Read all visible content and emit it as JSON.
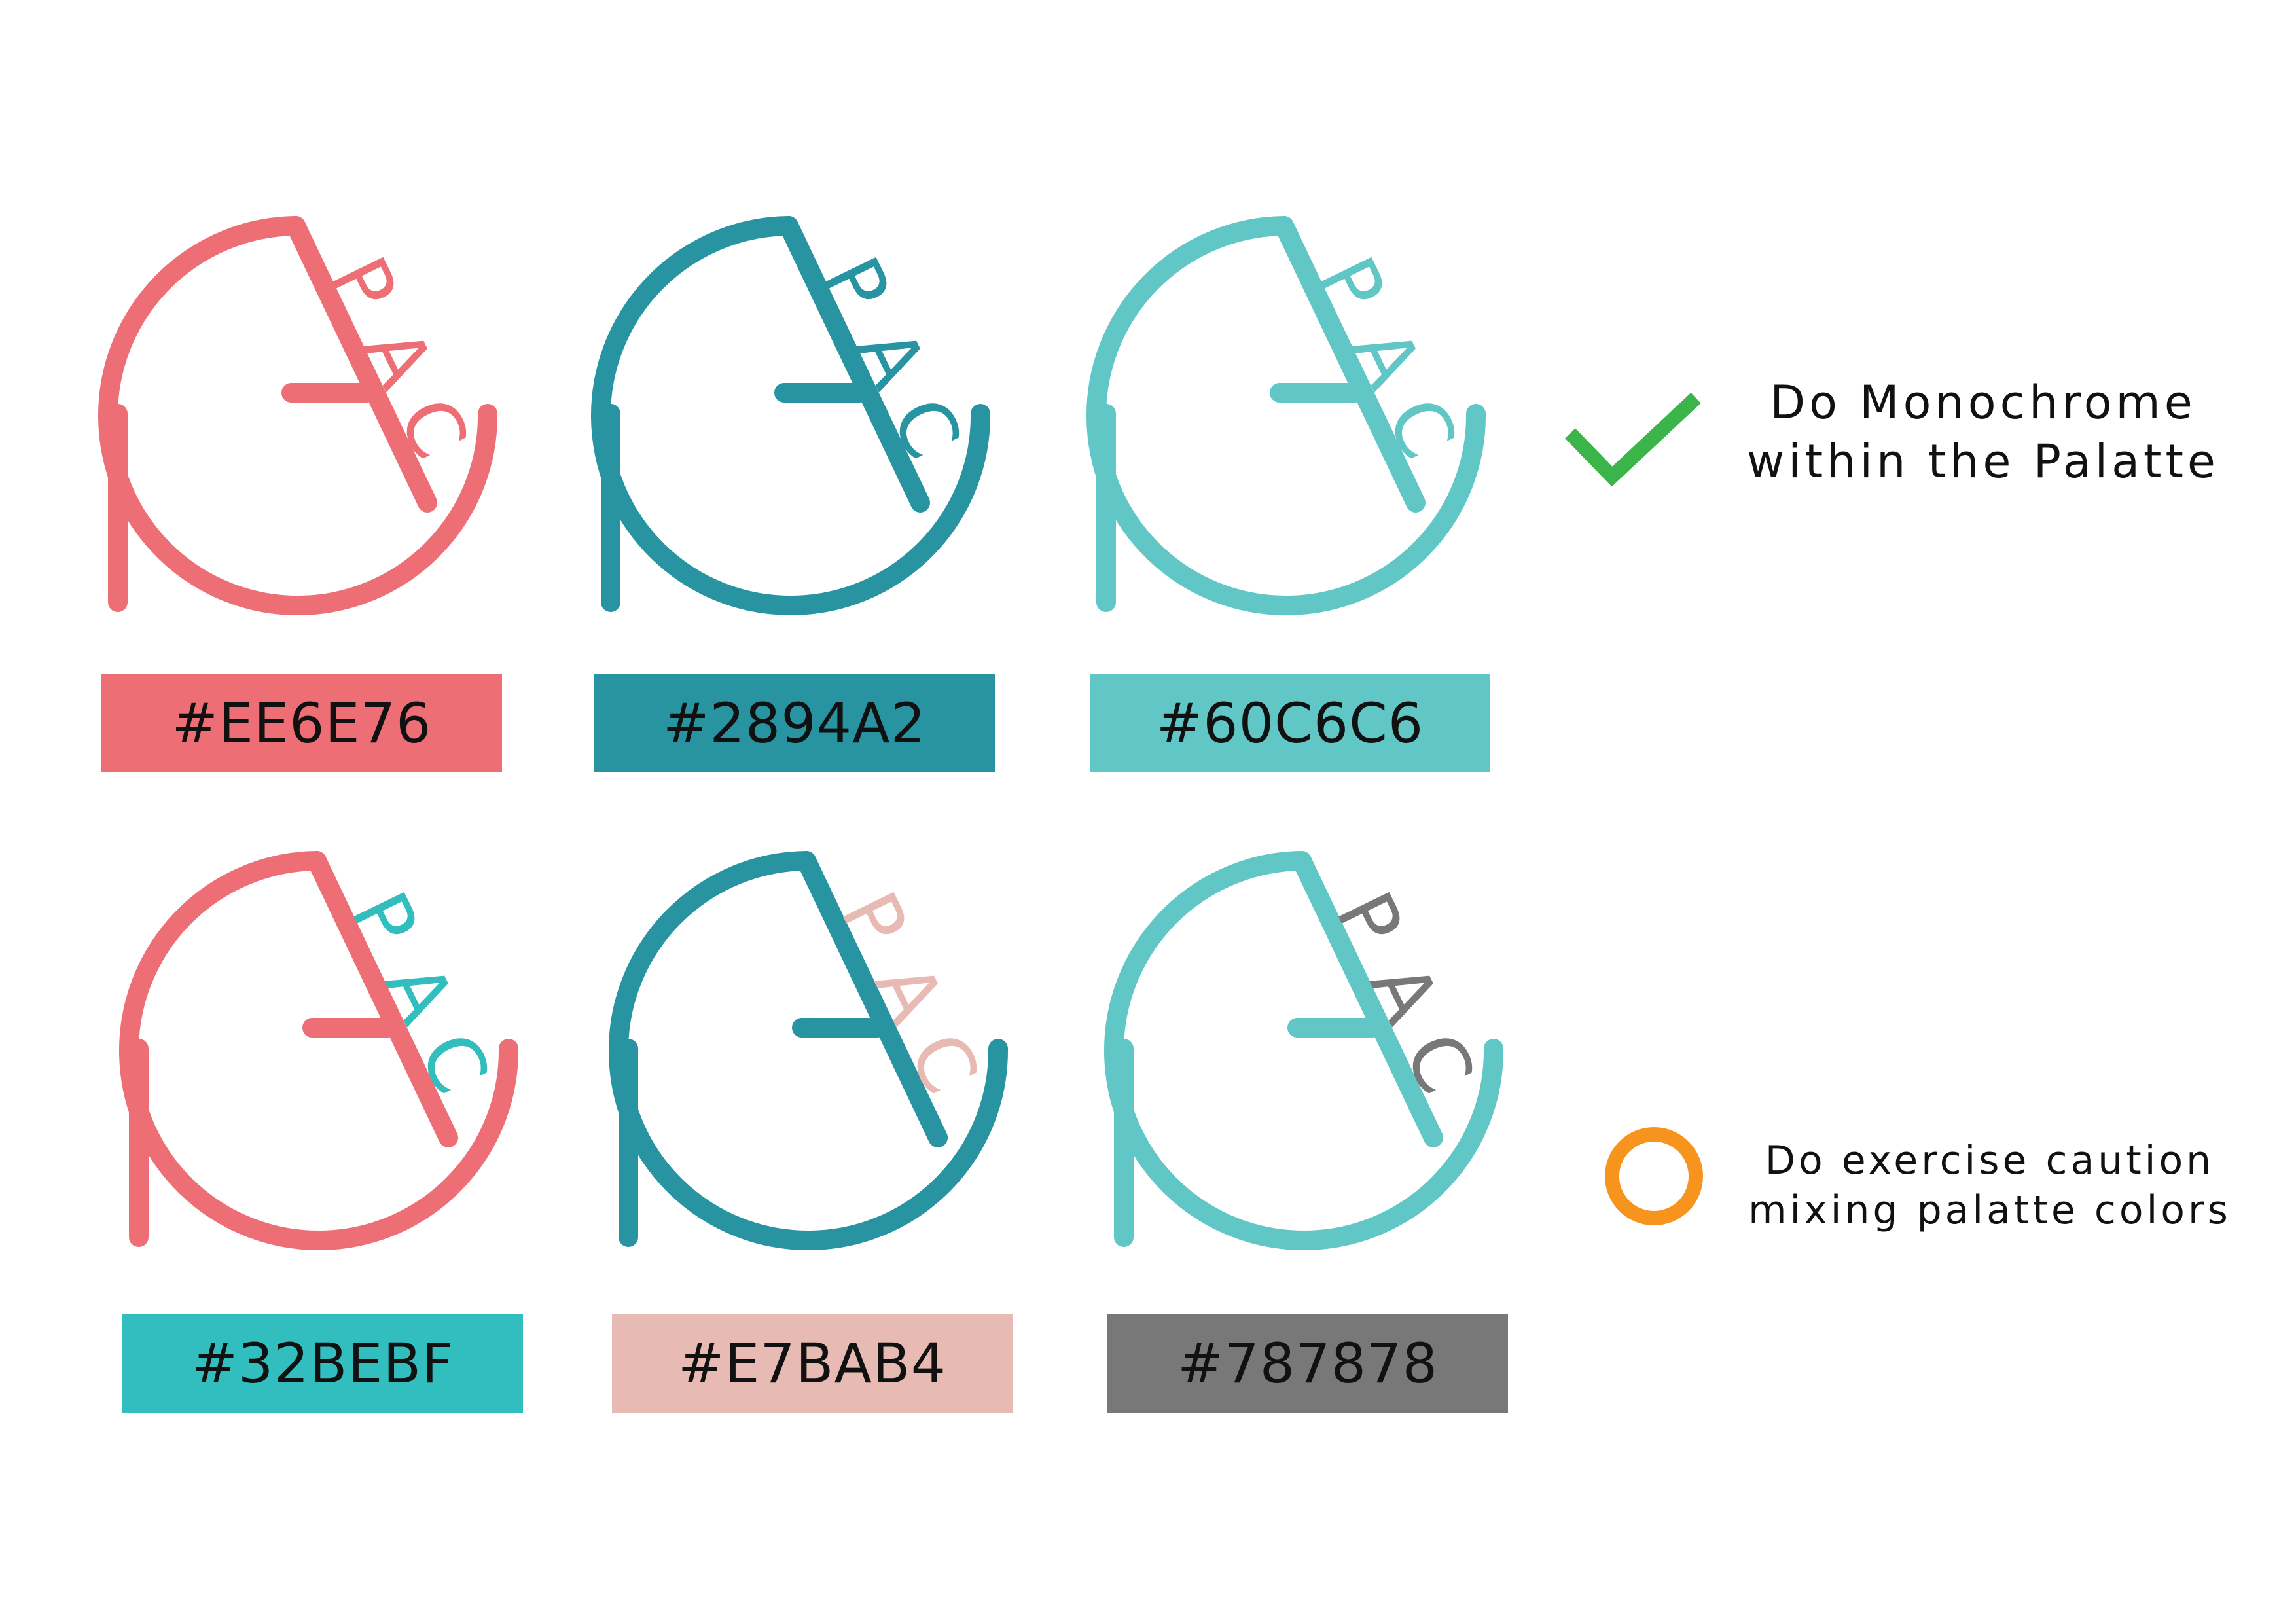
{
  "logo_text": "PAC",
  "logos": [
    {
      "ring_color": "#EE6E76",
      "text_color": "#EE6E76",
      "swatch_label": "#EE6E76",
      "swatch_color": "#EE6E76"
    },
    {
      "ring_color": "#2894A2",
      "text_color": "#2894A2",
      "swatch_label": "#2894A2",
      "swatch_color": "#2894A2"
    },
    {
      "ring_color": "#60C6C6",
      "text_color": "#60C6C6",
      "swatch_label": "#60C6C6",
      "swatch_color": "#60C6C6"
    },
    {
      "ring_color": "#EE6E76",
      "text_color": "#32BEBF",
      "swatch_label": "#32BEBF",
      "swatch_color": "#32BEBF"
    },
    {
      "ring_color": "#2894A2",
      "text_color": "#E7BAB4",
      "swatch_label": "#E7BAB4",
      "swatch_color": "#E7BAB4"
    },
    {
      "ring_color": "#60C6C6",
      "text_color": "#787878",
      "swatch_label": "#787878",
      "swatch_color": "#787878"
    }
  ],
  "notes": {
    "do": {
      "icon": "check-icon",
      "icon_color": "#3BB44A",
      "lines": [
        "Do Monochrome",
        "within the Palatte"
      ]
    },
    "caution": {
      "icon": "circle-icon",
      "icon_color": "#F7941D",
      "lines": [
        "Do exercise caution",
        "mixing palatte colors"
      ]
    }
  }
}
